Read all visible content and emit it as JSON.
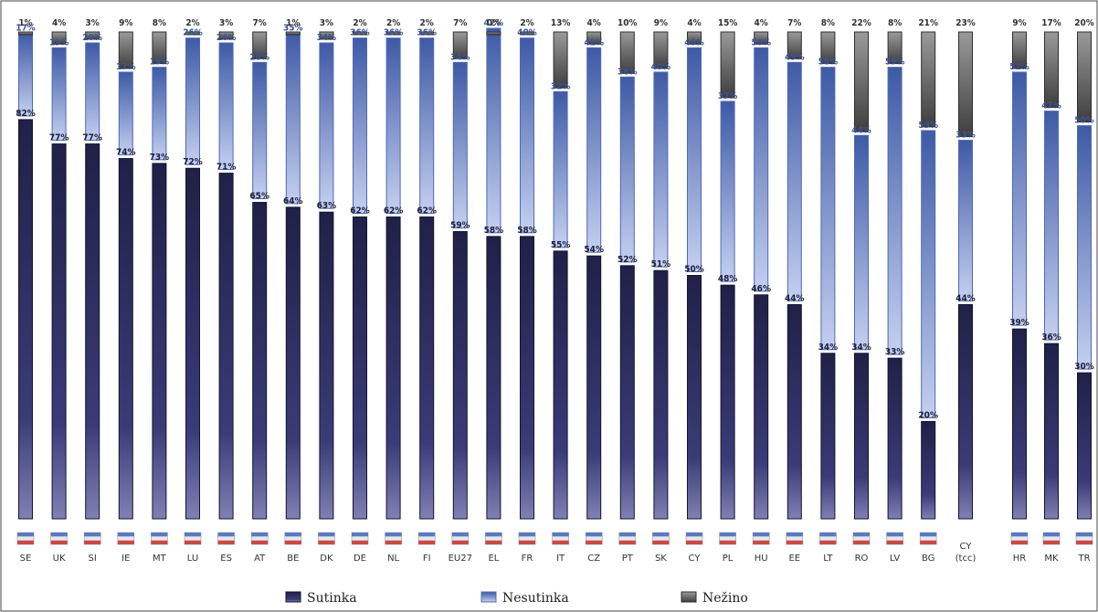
{
  "chart_data": {
    "type": "bar",
    "stacked": true,
    "categories": [
      "SE",
      "UK",
      "SI",
      "IE",
      "MT",
      "LU",
      "ES",
      "AT",
      "BE",
      "DK",
      "DE",
      "NL",
      "FI",
      "EU27",
      "EL",
      "FR",
      "IT",
      "CZ",
      "PT",
      "SK",
      "CY",
      "PL",
      "HU",
      "EE",
      "LT",
      "RO",
      "LV",
      "BG",
      "CY (tcc)",
      "HR",
      "MK",
      "TR"
    ],
    "series": [
      {
        "name": "Sutinka",
        "color": "#2a2a5a",
        "values": [
          82,
          77,
          77,
          74,
          73,
          72,
          71,
          65,
          64,
          63,
          62,
          62,
          62,
          59,
          58,
          58,
          55,
          54,
          52,
          51,
          50,
          48,
          46,
          44,
          34,
          34,
          33,
          20,
          44,
          39,
          36,
          30
        ]
      },
      {
        "name": "Nesutinka",
        "color": "#8fa3dc",
        "values": [
          17,
          19,
          20,
          17,
          19,
          26,
          26,
          28,
          35,
          34,
          36,
          36,
          36,
          34,
          42,
          40,
          32,
          42,
          38,
          40,
          46,
          37,
          50,
          49,
          58,
          44,
          59,
          59,
          33,
          52,
          47,
          50
        ]
      },
      {
        "name": "Nežino",
        "color": "#6e6e6e",
        "values": [
          1,
          4,
          3,
          9,
          8,
          2,
          3,
          7,
          1,
          3,
          2,
          2,
          2,
          7,
          0,
          2,
          13,
          4,
          10,
          9,
          4,
          15,
          4,
          7,
          8,
          22,
          8,
          21,
          23,
          9,
          17,
          20
        ]
      }
    ],
    "legend": {
      "placement": "bottom",
      "labels": [
        "Sutinka",
        "Nesutinka",
        "Nežino"
      ]
    },
    "ylim": [
      0,
      100
    ],
    "grid": false
  }
}
